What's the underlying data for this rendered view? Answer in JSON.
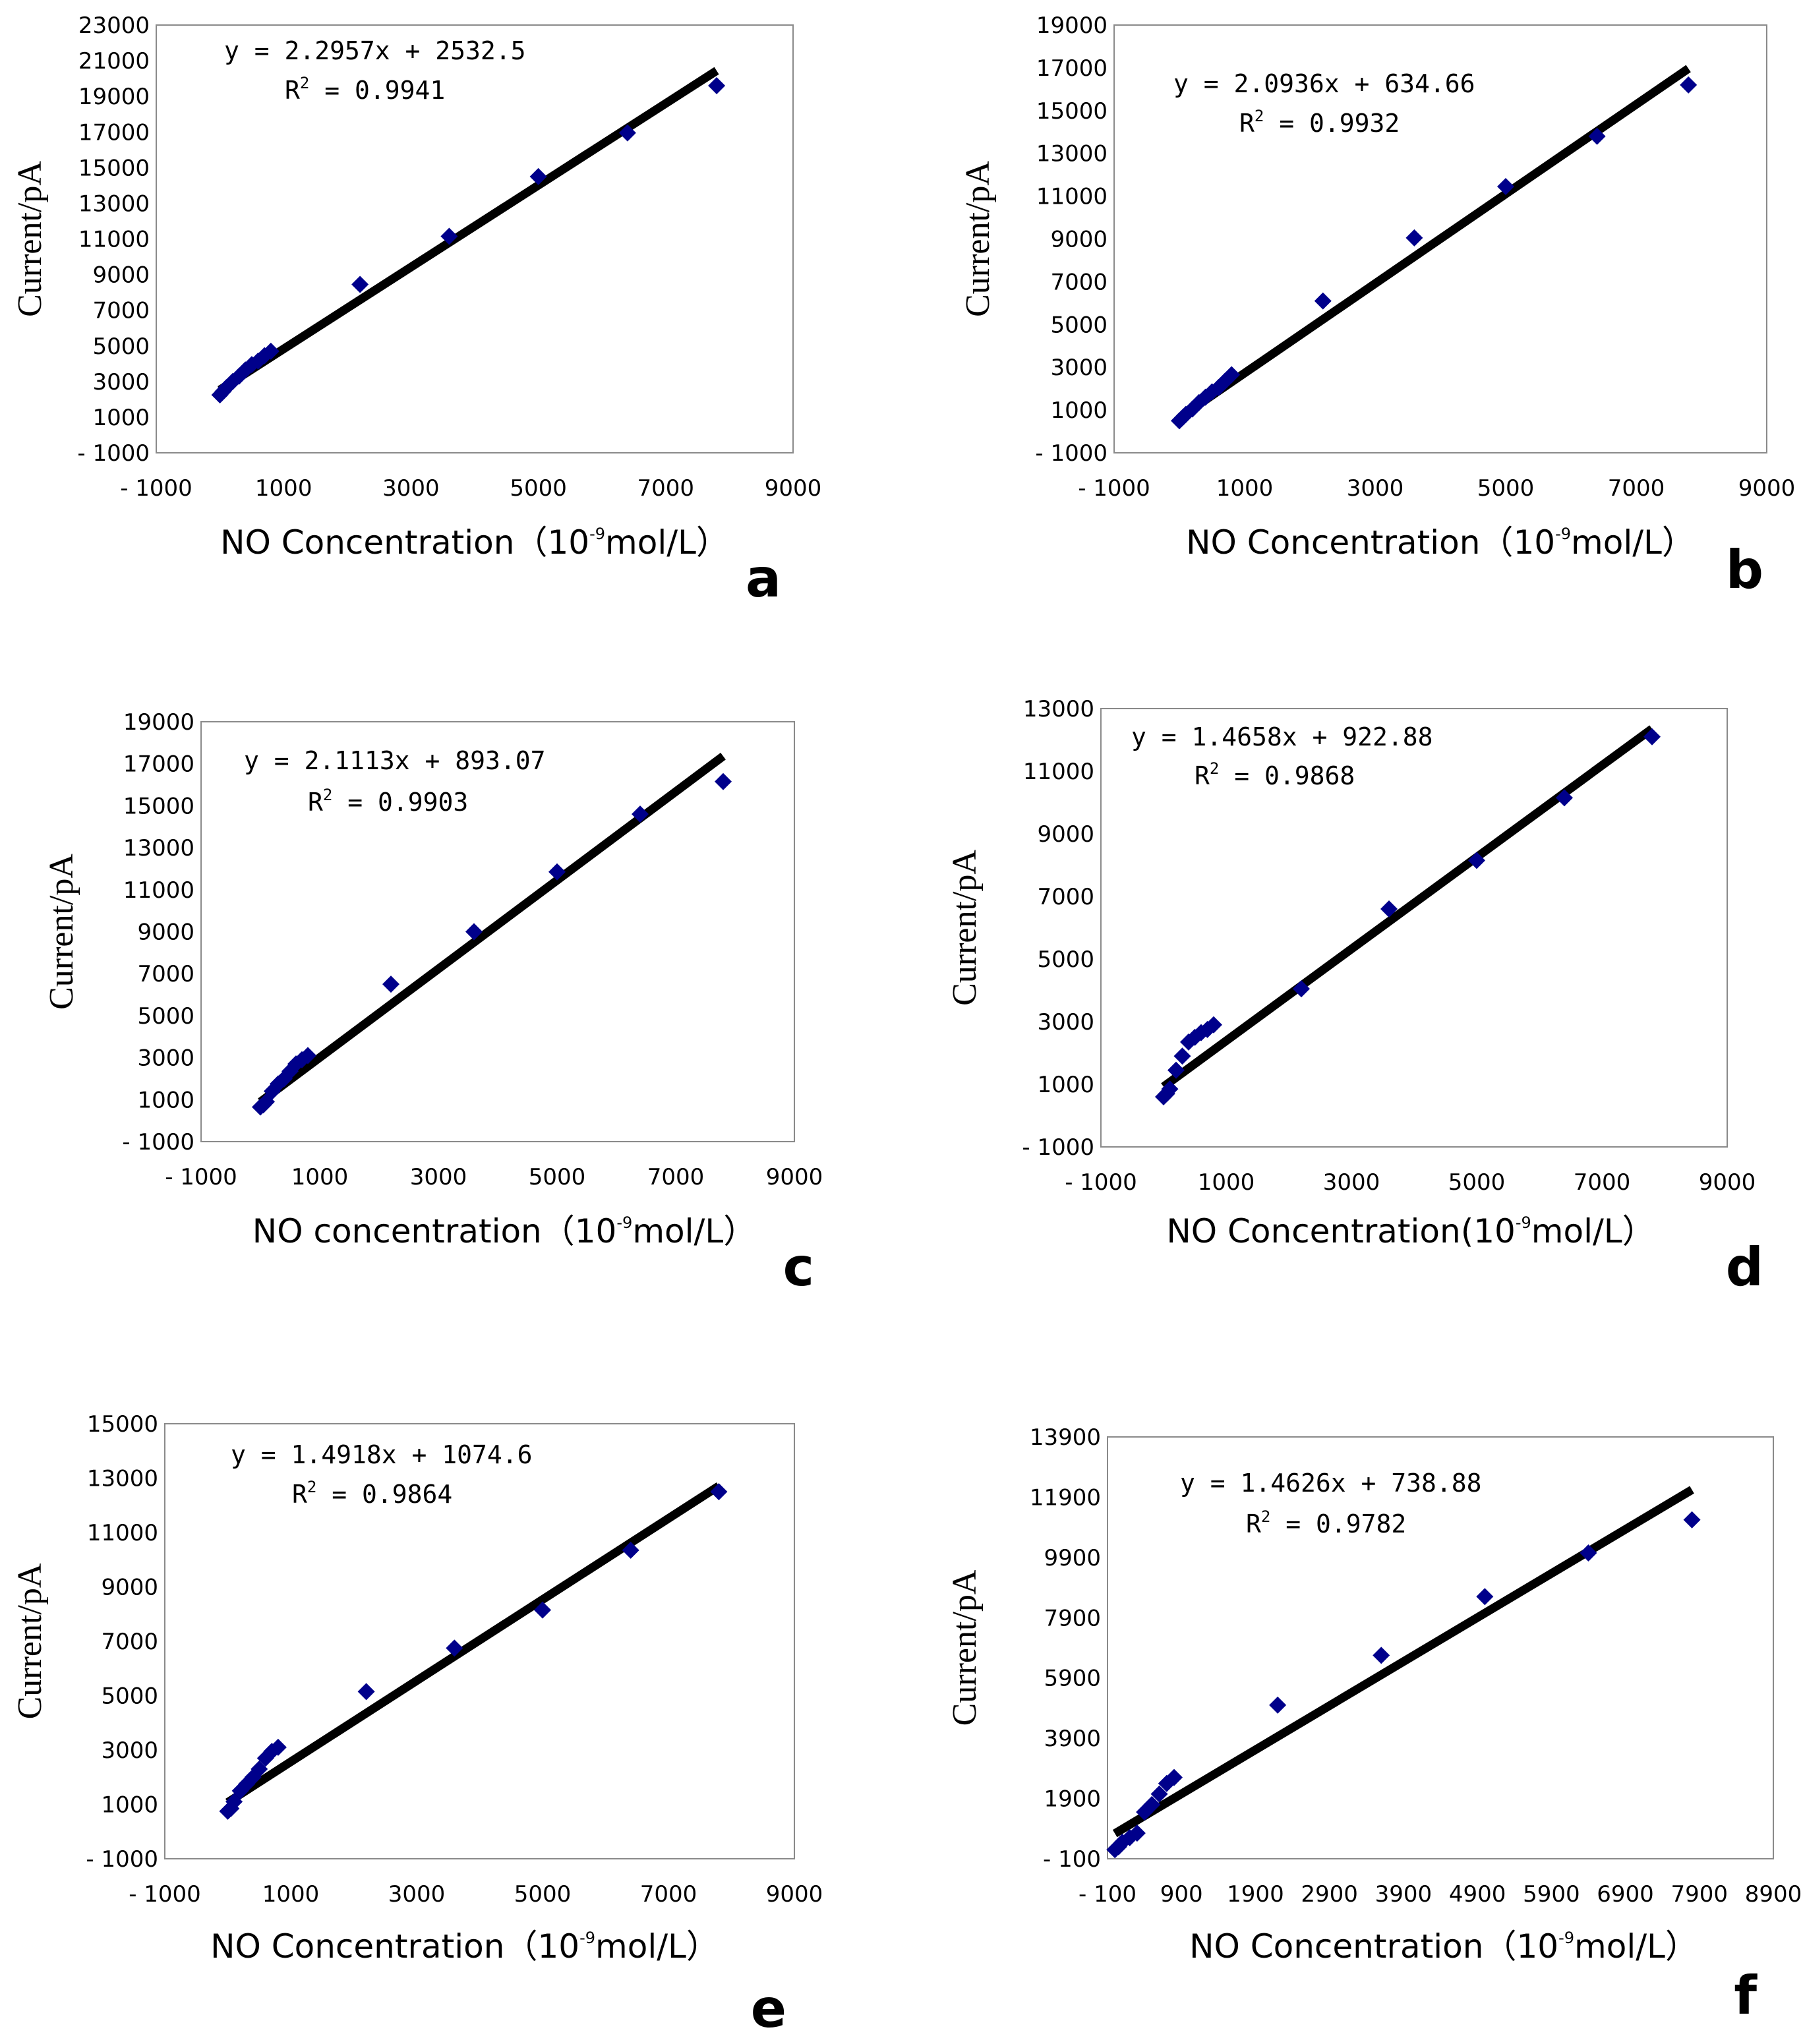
{
  "chart_data": [
    {
      "type": "scatter",
      "panel": "a",
      "ylabel": "Current/pA",
      "xlabel": "NO Concentration（10⁻⁹mol/L）",
      "xlabel_base": "NO Concentration（10",
      "xlabel_sup": "-9",
      "xlabel_tail": "mol/L）",
      "xlim": [
        -1000,
        9000
      ],
      "ylim": [
        -1000,
        23000
      ],
      "xticks": [
        -1000,
        1000,
        3000,
        5000,
        7000,
        9000
      ],
      "yticks": [
        -1000,
        1000,
        3000,
        5000,
        7000,
        9000,
        11000,
        13000,
        15000,
        17000,
        19000,
        21000,
        23000
      ],
      "equation": "y = 2.2957x + 2532.5",
      "r2_label": "R",
      "r2_sup": "2",
      "r2_value": " = 0.9941",
      "fit": {
        "slope": 2.2957,
        "intercept": 2532.5,
        "x_start": 0,
        "x_end": 7800
      },
      "x": [
        0,
        50,
        100,
        200,
        300,
        400,
        500,
        600,
        700,
        800,
        2200,
        3600,
        5000,
        6400,
        7800
      ],
      "y": [
        2250,
        2450,
        2650,
        3000,
        3300,
        3650,
        3950,
        4150,
        4450,
        4700,
        8450,
        11150,
        14500,
        16950,
        19600
      ]
    },
    {
      "type": "scatter",
      "panel": "b",
      "ylabel": "Current/pA",
      "xlabel": "NO Concentration（10⁻⁹mol/L）",
      "xlabel_base": "NO Concentration（10",
      "xlabel_sup": "-9",
      "xlabel_tail": "mol/L）",
      "xlim": [
        -1000,
        9000
      ],
      "ylim": [
        -1000,
        19000
      ],
      "xticks": [
        -1000,
        1000,
        3000,
        5000,
        7000,
        9000
      ],
      "yticks": [
        -1000,
        1000,
        3000,
        5000,
        7000,
        9000,
        11000,
        13000,
        15000,
        17000,
        19000
      ],
      "equation": "y = 2.0936x + 634.66",
      "r2_label": "R",
      "r2_sup": "2",
      "r2_value": " = 0.9932",
      "fit": {
        "slope": 2.0936,
        "intercept": 634.66,
        "x_start": 0,
        "x_end": 7800
      },
      "x": [
        0,
        50,
        100,
        200,
        300,
        400,
        500,
        600,
        700,
        800,
        2200,
        3600,
        5000,
        6400,
        7800
      ],
      "y": [
        500,
        650,
        800,
        1050,
        1350,
        1600,
        1850,
        2050,
        2350,
        2650,
        6100,
        9050,
        11450,
        13800,
        16200
      ]
    },
    {
      "type": "scatter",
      "panel": "c",
      "ylabel": "Current/pA",
      "xlabel": "NO concentration（10⁻⁹mol/L）",
      "xlabel_base": "NO concentration（10",
      "xlabel_sup": "-9",
      "xlabel_tail": "mol/L）",
      "xlim": [
        -1000,
        9000
      ],
      "ylim": [
        -1000,
        19000
      ],
      "xticks": [
        -1000,
        1000,
        3000,
        5000,
        7000,
        9000
      ],
      "yticks": [
        -1000,
        1000,
        3000,
        5000,
        7000,
        9000,
        11000,
        13000,
        15000,
        17000,
        19000
      ],
      "equation": "y = 2.1113x + 893.07",
      "r2_label": "R",
      "r2_sup": "2",
      "r2_value": " = 0.9903",
      "fit": {
        "slope": 2.1113,
        "intercept": 893.07,
        "x_start": 0,
        "x_end": 7800
      },
      "x": [
        0,
        50,
        100,
        200,
        300,
        400,
        500,
        600,
        700,
        800,
        2200,
        3600,
        5000,
        6400,
        7800
      ],
      "y": [
        650,
        750,
        900,
        1400,
        1750,
        2000,
        2350,
        2700,
        2900,
        3100,
        6500,
        9000,
        11850,
        14600,
        16150
      ]
    },
    {
      "type": "scatter",
      "panel": "d",
      "ylabel": "Current/pA",
      "xlabel": "NO Concentration(10⁻⁹mol/L）",
      "xlabel_base": "NO Concentration(10",
      "xlabel_sup": "-9",
      "xlabel_tail": "mol/L）",
      "xlim": [
        -1000,
        9000
      ],
      "ylim": [
        -1000,
        13000
      ],
      "xticks": [
        -1000,
        1000,
        3000,
        5000,
        7000,
        9000
      ],
      "yticks": [
        -1000,
        1000,
        3000,
        5000,
        7000,
        9000,
        11000,
        13000
      ],
      "equation": "y = 1.4658x + 922.88",
      "r2_label": "R",
      "r2_sup": "2",
      "r2_value": " = 0.9868",
      "fit": {
        "slope": 1.4658,
        "intercept": 922.88,
        "x_start": 0,
        "x_end": 7800
      },
      "x": [
        0,
        50,
        100,
        200,
        300,
        400,
        500,
        600,
        700,
        800,
        2200,
        3600,
        5000,
        6400,
        7800
      ],
      "y": [
        600,
        700,
        850,
        1450,
        1900,
        2350,
        2500,
        2650,
        2750,
        2900,
        4050,
        6600,
        8150,
        10150,
        12100
      ]
    },
    {
      "type": "scatter",
      "panel": "e",
      "ylabel": "Current/pA",
      "xlabel": "NO Concentration（10⁻⁹mol/L）",
      "xlabel_base": "NO Concentration（10",
      "xlabel_sup": "-9",
      "xlabel_tail": "mol/L）",
      "xlim": [
        -1000,
        9000
      ],
      "ylim": [
        -1000,
        15000
      ],
      "xticks": [
        -1000,
        1000,
        3000,
        5000,
        7000,
        9000
      ],
      "yticks": [
        -1000,
        1000,
        3000,
        5000,
        7000,
        9000,
        11000,
        13000,
        15000
      ],
      "equation": "y = 1.4918x + 1074.6",
      "r2_label": "R",
      "r2_sup": "2",
      "r2_value": " = 0.9864",
      "fit": {
        "slope": 1.4918,
        "intercept": 1074.6,
        "x_start": 0,
        "x_end": 7800
      },
      "x": [
        0,
        50,
        100,
        200,
        300,
        400,
        500,
        600,
        700,
        800,
        2200,
        3600,
        5000,
        6400,
        7800
      ],
      "y": [
        750,
        850,
        1100,
        1500,
        1750,
        2000,
        2300,
        2700,
        2950,
        3100,
        5150,
        6750,
        8150,
        10350,
        12500
      ]
    },
    {
      "type": "scatter",
      "panel": "f",
      "ylabel": "Current/pA",
      "xlabel": "NO Concentration（10⁻⁹mol/L）",
      "xlabel_base": "NO Concentration（10",
      "xlabel_sup": "-9",
      "xlabel_tail": "mol/L）",
      "xlim": [
        -100,
        8900
      ],
      "ylim": [
        -100,
        13900
      ],
      "xticks": [
        -100,
        900,
        1900,
        2900,
        3900,
        4900,
        5900,
        6900,
        7900,
        8900
      ],
      "yticks": [
        -100,
        1900,
        3900,
        5900,
        7900,
        9900,
        11900,
        13900
      ],
      "equation": "y = 1.4626x + 738.88",
      "r2_label": "R",
      "r2_sup": "2",
      "r2_value": " = 0.9782",
      "fit": {
        "slope": 1.4626,
        "intercept": 738.88,
        "x_start": 0,
        "x_end": 7800
      },
      "x": [
        0,
        50,
        100,
        200,
        300,
        400,
        500,
        600,
        700,
        800,
        2200,
        3600,
        5000,
        6400,
        7800
      ],
      "y": [
        200,
        300,
        450,
        600,
        750,
        1450,
        1700,
        2050,
        2400,
        2600,
        5000,
        6650,
        8600,
        10050,
        11150
      ]
    }
  ]
}
